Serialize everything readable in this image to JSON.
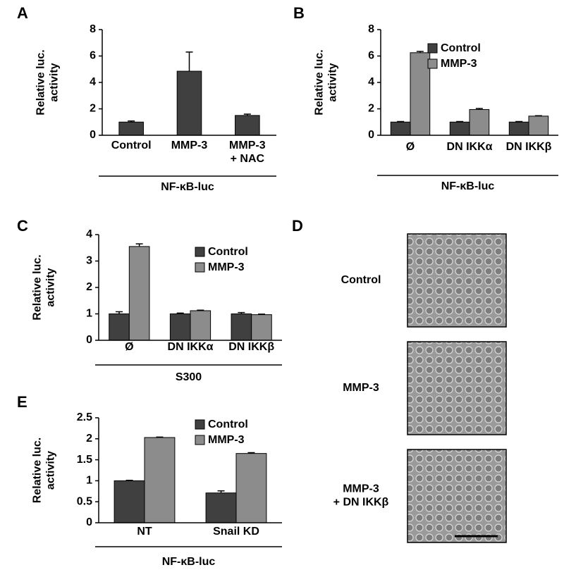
{
  "chart_data": [
    {
      "panel": "A",
      "type": "bar",
      "ylabel": "Relative luc.\nactivity",
      "categories": [
        "Control",
        "MMP-3",
        "MMP-3\n+ NAC"
      ],
      "values": [
        1.0,
        4.85,
        1.5
      ],
      "errors": [
        0.08,
        1.45,
        0.1
      ],
      "color": "#404040",
      "ylim": [
        0,
        8
      ],
      "yticks": [
        0,
        2,
        4,
        6,
        8
      ],
      "group_label": "NF-κB-luc"
    },
    {
      "panel": "B",
      "type": "bar",
      "ylabel": "Relative luc.\nactivity",
      "categories": [
        "Ø",
        "DN IKKα",
        "DN IKKβ"
      ],
      "series": [
        {
          "name": "Control",
          "color": "#404040",
          "values": [
            1.0,
            1.0,
            1.0
          ],
          "errors": [
            0.04,
            0.04,
            0.04
          ]
        },
        {
          "name": "MMP-3",
          "color": "#8c8c8c",
          "values": [
            6.25,
            1.95,
            1.45
          ],
          "errors": [
            0.1,
            0.08,
            0.03
          ]
        }
      ],
      "ylim": [
        0,
        8
      ],
      "yticks": [
        0,
        2,
        4,
        6,
        8
      ],
      "group_label": "NF-κB-luc",
      "legend": "upper right"
    },
    {
      "panel": "C",
      "type": "bar",
      "ylabel": "Relative luc.\nactivity",
      "categories": [
        "Ø",
        "DN IKKα",
        "DN IKKβ"
      ],
      "series": [
        {
          "name": "Control",
          "color": "#404040",
          "values": [
            1.0,
            1.0,
            1.0
          ],
          "errors": [
            0.08,
            0.03,
            0.05
          ]
        },
        {
          "name": "MMP-3",
          "color": "#8c8c8c",
          "values": [
            3.55,
            1.12,
            0.97
          ],
          "errors": [
            0.1,
            0.02,
            0.02
          ]
        }
      ],
      "ylim": [
        0,
        4
      ],
      "yticks": [
        0,
        1,
        2,
        3,
        4
      ],
      "group_label": "S300",
      "legend": "upper right"
    },
    {
      "panel": "E",
      "type": "bar",
      "ylabel": "Relative luc.\nactivity",
      "categories": [
        "NT",
        "Snail KD"
      ],
      "series": [
        {
          "name": "Control",
          "color": "#404040",
          "values": [
            1.0,
            0.71
          ],
          "errors": [
            0.01,
            0.05
          ]
        },
        {
          "name": "MMP-3",
          "color": "#8c8c8c",
          "values": [
            2.03,
            1.65
          ],
          "errors": [
            0.01,
            0.02
          ]
        }
      ],
      "ylim": [
        0,
        2.5
      ],
      "yticks": [
        0,
        0.5,
        1,
        1.5,
        2,
        2.5
      ],
      "group_label": "NF-κB-luc",
      "legend": "upper right"
    }
  ],
  "images": {
    "panel": "D",
    "labels": [
      "Control",
      "MMP-3",
      "MMP-3\n+ DN IKKβ"
    ]
  }
}
